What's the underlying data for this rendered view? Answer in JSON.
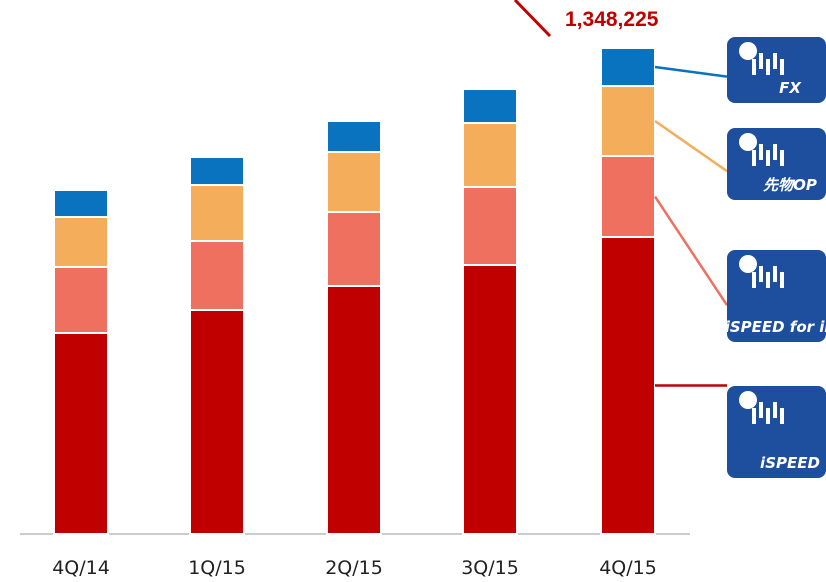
{
  "chart_data": {
    "type": "stacked-bar",
    "categories": [
      "4Q/14",
      "1Q/15",
      "2Q/15",
      "3Q/15",
      "4Q/15"
    ],
    "series": [
      {
        "name": "iSPEED",
        "color": "#c00000",
        "values": [
          557600,
          621400,
          688000,
          746200,
          823878
        ]
      },
      {
        "name": "iSPEED for iPad",
        "color": "#f07060",
        "values": [
          183100,
          191400,
          205300,
          216400,
          224694
        ]
      },
      {
        "name": "先物OP",
        "color": "#f4ad5a",
        "values": [
          138700,
          155300,
          166400,
          177500,
          194180
        ]
      },
      {
        "name": "FX",
        "color": "#0a73c0",
        "values": [
          74900,
          77700,
          86000,
          94300,
          105473
        ]
      }
    ],
    "annotations": [
      {
        "text": "1,348,225",
        "value": 1348225
      }
    ]
  }
}
